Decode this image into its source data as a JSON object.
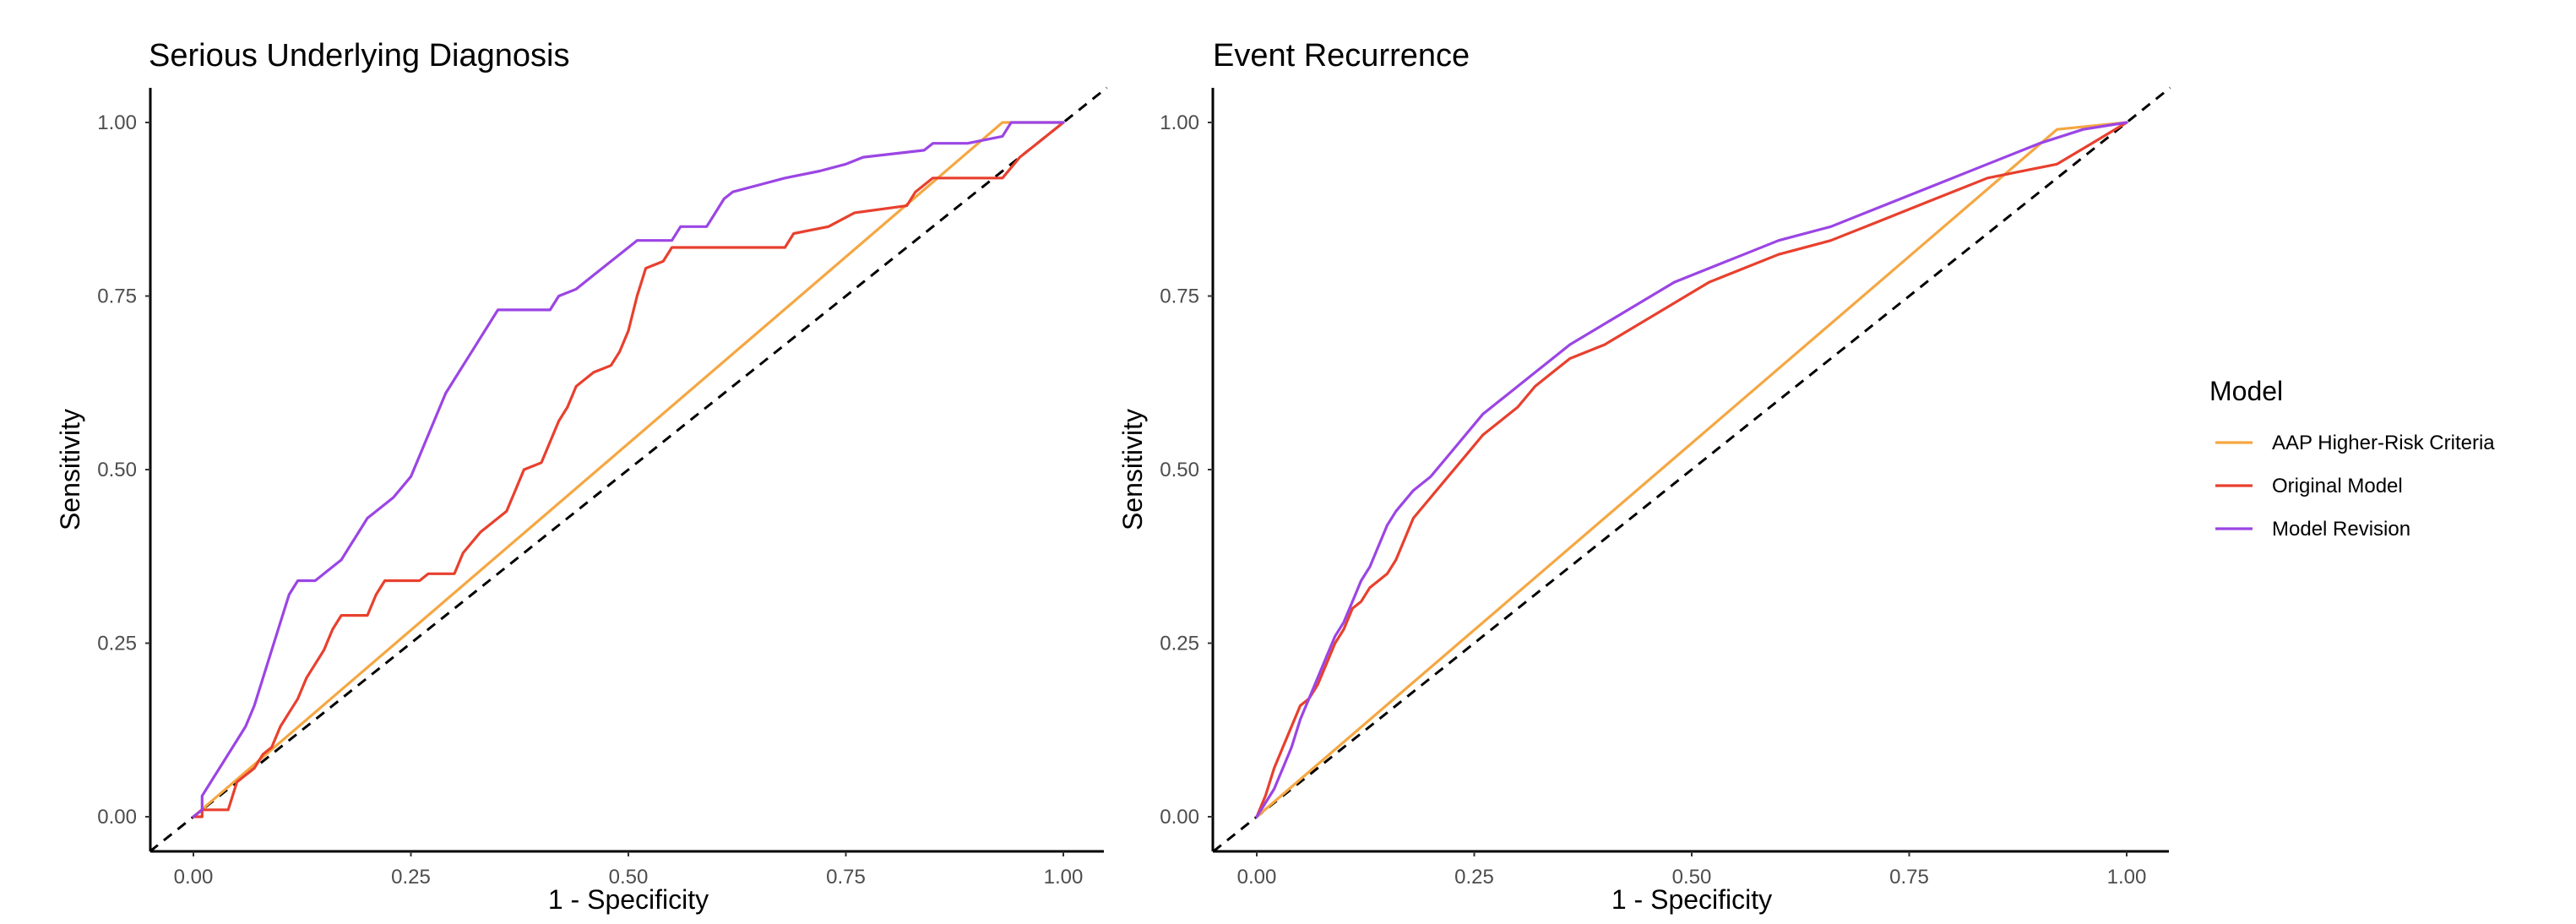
{
  "legend": {
    "title": "Model",
    "entries": [
      {
        "name": "AAP Higher-Risk Criteria",
        "color": "#f5a742"
      },
      {
        "name": "Original Model",
        "color": "#e8402e"
      },
      {
        "name": "Model Revision",
        "color": "#9b45e4"
      }
    ]
  },
  "chart_data": [
    {
      "type": "line",
      "title": "Serious Underlying Diagnosis",
      "xlabel": "1 - Specificity",
      "ylabel": "Sensitivity",
      "xlim": [
        0,
        1
      ],
      "ylim": [
        0,
        1
      ],
      "xticks": [
        "0.00",
        "0.25",
        "0.50",
        "0.75",
        "1.00"
      ],
      "yticks": [
        "0.00",
        "0.25",
        "0.50",
        "0.75",
        "1.00"
      ],
      "reference_line": "dashed diagonal",
      "series": [
        {
          "name": "AAP Higher-Risk Criteria",
          "color": "#f5a742",
          "points": [
            [
              0,
              0
            ],
            [
              0.93,
              1
            ],
            [
              1,
              1
            ]
          ]
        },
        {
          "name": "Original Model",
          "color": "#e8402e",
          "points": [
            [
              0,
              0
            ],
            [
              0.01,
              0
            ],
            [
              0.01,
              0.01
            ],
            [
              0.04,
              0.01
            ],
            [
              0.05,
              0.05
            ],
            [
              0.07,
              0.07
            ],
            [
              0.08,
              0.09
            ],
            [
              0.09,
              0.1
            ],
            [
              0.1,
              0.13
            ],
            [
              0.11,
              0.15
            ],
            [
              0.12,
              0.17
            ],
            [
              0.13,
              0.2
            ],
            [
              0.14,
              0.22
            ],
            [
              0.15,
              0.24
            ],
            [
              0.16,
              0.27
            ],
            [
              0.17,
              0.29
            ],
            [
              0.2,
              0.29
            ],
            [
              0.21,
              0.32
            ],
            [
              0.22,
              0.34
            ],
            [
              0.26,
              0.34
            ],
            [
              0.27,
              0.35
            ],
            [
              0.3,
              0.35
            ],
            [
              0.31,
              0.38
            ],
            [
              0.33,
              0.41
            ],
            [
              0.35,
              0.43
            ],
            [
              0.36,
              0.44
            ],
            [
              0.37,
              0.47
            ],
            [
              0.38,
              0.5
            ],
            [
              0.4,
              0.51
            ],
            [
              0.41,
              0.54
            ],
            [
              0.42,
              0.57
            ],
            [
              0.43,
              0.59
            ],
            [
              0.44,
              0.62
            ],
            [
              0.46,
              0.64
            ],
            [
              0.48,
              0.65
            ],
            [
              0.49,
              0.67
            ],
            [
              0.5,
              0.7
            ],
            [
              0.51,
              0.75
            ],
            [
              0.52,
              0.79
            ],
            [
              0.54,
              0.8
            ],
            [
              0.55,
              0.82
            ],
            [
              0.68,
              0.82
            ],
            [
              0.69,
              0.84
            ],
            [
              0.73,
              0.85
            ],
            [
              0.76,
              0.87
            ],
            [
              0.82,
              0.88
            ],
            [
              0.83,
              0.9
            ],
            [
              0.84,
              0.91
            ],
            [
              0.85,
              0.92
            ],
            [
              0.93,
              0.92
            ],
            [
              0.95,
              0.95
            ],
            [
              0.97,
              0.97
            ],
            [
              1,
              1
            ]
          ]
        },
        {
          "name": "Model Revision",
          "color": "#9b45e4",
          "points": [
            [
              0,
              0
            ],
            [
              0.01,
              0.01
            ],
            [
              0.01,
              0.03
            ],
            [
              0.02,
              0.05
            ],
            [
              0.03,
              0.07
            ],
            [
              0.04,
              0.09
            ],
            [
              0.05,
              0.11
            ],
            [
              0.06,
              0.13
            ],
            [
              0.07,
              0.16
            ],
            [
              0.08,
              0.2
            ],
            [
              0.09,
              0.24
            ],
            [
              0.1,
              0.28
            ],
            [
              0.11,
              0.32
            ],
            [
              0.12,
              0.34
            ],
            [
              0.14,
              0.34
            ],
            [
              0.15,
              0.35
            ],
            [
              0.17,
              0.37
            ],
            [
              0.18,
              0.39
            ],
            [
              0.19,
              0.41
            ],
            [
              0.2,
              0.43
            ],
            [
              0.22,
              0.45
            ],
            [
              0.23,
              0.46
            ],
            [
              0.25,
              0.49
            ],
            [
              0.26,
              0.52
            ],
            [
              0.27,
              0.55
            ],
            [
              0.28,
              0.58
            ],
            [
              0.29,
              0.61
            ],
            [
              0.3,
              0.63
            ],
            [
              0.31,
              0.65
            ],
            [
              0.32,
              0.67
            ],
            [
              0.33,
              0.69
            ],
            [
              0.34,
              0.71
            ],
            [
              0.35,
              0.73
            ],
            [
              0.41,
              0.73
            ],
            [
              0.42,
              0.75
            ],
            [
              0.44,
              0.76
            ],
            [
              0.46,
              0.78
            ],
            [
              0.48,
              0.8
            ],
            [
              0.5,
              0.82
            ],
            [
              0.51,
              0.83
            ],
            [
              0.55,
              0.83
            ],
            [
              0.56,
              0.85
            ],
            [
              0.59,
              0.85
            ],
            [
              0.6,
              0.87
            ],
            [
              0.61,
              0.89
            ],
            [
              0.62,
              0.9
            ],
            [
              0.65,
              0.91
            ],
            [
              0.68,
              0.92
            ],
            [
              0.72,
              0.93
            ],
            [
              0.75,
              0.94
            ],
            [
              0.77,
              0.95
            ],
            [
              0.84,
              0.96
            ],
            [
              0.85,
              0.97
            ],
            [
              0.89,
              0.97
            ],
            [
              0.93,
              0.98
            ],
            [
              0.94,
              1.0
            ],
            [
              1,
              1
            ]
          ]
        }
      ]
    },
    {
      "type": "line",
      "title": "Event Recurrence",
      "xlabel": "1 - Specificity",
      "ylabel": "Sensitivity",
      "xlim": [
        0,
        1
      ],
      "ylim": [
        0,
        1
      ],
      "xticks": [
        "0.00",
        "0.25",
        "0.50",
        "0.75",
        "1.00"
      ],
      "yticks": [
        "0.00",
        "0.25",
        "0.50",
        "0.75",
        "1.00"
      ],
      "reference_line": "dashed diagonal",
      "series": [
        {
          "name": "AAP Higher-Risk Criteria",
          "color": "#f5a742",
          "points": [
            [
              0,
              0
            ],
            [
              0.92,
              0.99
            ],
            [
              1,
              1
            ]
          ]
        },
        {
          "name": "Original Model",
          "color": "#e8402e",
          "points": [
            [
              0,
              0
            ],
            [
              0.01,
              0.03
            ],
            [
              0.02,
              0.07
            ],
            [
              0.03,
              0.1
            ],
            [
              0.04,
              0.13
            ],
            [
              0.05,
              0.16
            ],
            [
              0.06,
              0.17
            ],
            [
              0.07,
              0.19
            ],
            [
              0.08,
              0.22
            ],
            [
              0.09,
              0.25
            ],
            [
              0.1,
              0.27
            ],
            [
              0.11,
              0.3
            ],
            [
              0.12,
              0.31
            ],
            [
              0.13,
              0.33
            ],
            [
              0.15,
              0.35
            ],
            [
              0.16,
              0.37
            ],
            [
              0.17,
              0.4
            ],
            [
              0.18,
              0.43
            ],
            [
              0.2,
              0.46
            ],
            [
              0.22,
              0.49
            ],
            [
              0.24,
              0.52
            ],
            [
              0.26,
              0.55
            ],
            [
              0.28,
              0.57
            ],
            [
              0.3,
              0.59
            ],
            [
              0.32,
              0.62
            ],
            [
              0.34,
              0.64
            ],
            [
              0.36,
              0.66
            ],
            [
              0.4,
              0.68
            ],
            [
              0.44,
              0.71
            ],
            [
              0.48,
              0.74
            ],
            [
              0.52,
              0.77
            ],
            [
              0.56,
              0.79
            ],
            [
              0.6,
              0.81
            ],
            [
              0.66,
              0.83
            ],
            [
              0.72,
              0.86
            ],
            [
              0.78,
              0.89
            ],
            [
              0.84,
              0.92
            ],
            [
              0.92,
              0.94
            ],
            [
              0.96,
              0.97
            ],
            [
              1,
              1
            ]
          ]
        },
        {
          "name": "Model Revision",
          "color": "#9b45e4",
          "points": [
            [
              0,
              0
            ],
            [
              0.01,
              0.02
            ],
            [
              0.02,
              0.04
            ],
            [
              0.03,
              0.07
            ],
            [
              0.04,
              0.1
            ],
            [
              0.05,
              0.14
            ],
            [
              0.06,
              0.17
            ],
            [
              0.07,
              0.2
            ],
            [
              0.08,
              0.23
            ],
            [
              0.09,
              0.26
            ],
            [
              0.1,
              0.28
            ],
            [
              0.11,
              0.31
            ],
            [
              0.12,
              0.34
            ],
            [
              0.13,
              0.36
            ],
            [
              0.14,
              0.39
            ],
            [
              0.15,
              0.42
            ],
            [
              0.16,
              0.44
            ],
            [
              0.18,
              0.47
            ],
            [
              0.2,
              0.49
            ],
            [
              0.22,
              0.52
            ],
            [
              0.24,
              0.55
            ],
            [
              0.26,
              0.58
            ],
            [
              0.28,
              0.6
            ],
            [
              0.3,
              0.62
            ],
            [
              0.32,
              0.64
            ],
            [
              0.34,
              0.66
            ],
            [
              0.36,
              0.68
            ],
            [
              0.4,
              0.71
            ],
            [
              0.44,
              0.74
            ],
            [
              0.48,
              0.77
            ],
            [
              0.52,
              0.79
            ],
            [
              0.56,
              0.81
            ],
            [
              0.6,
              0.83
            ],
            [
              0.66,
              0.85
            ],
            [
              0.72,
              0.88
            ],
            [
              0.78,
              0.91
            ],
            [
              0.84,
              0.94
            ],
            [
              0.9,
              0.97
            ],
            [
              0.95,
              0.99
            ],
            [
              1,
              1
            ]
          ]
        }
      ]
    }
  ]
}
